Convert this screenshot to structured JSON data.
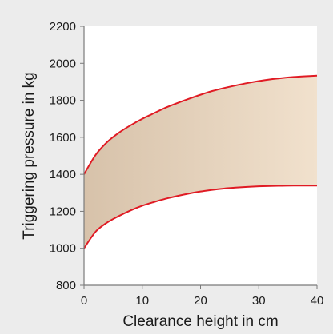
{
  "chart_data": {
    "type": "area",
    "xlabel": "Clearance height in cm",
    "ylabel": "Triggering pressure in kg",
    "xlim": [
      0,
      40
    ],
    "ylim": [
      800,
      2200
    ],
    "x_ticks": [
      0,
      10,
      20,
      30,
      40
    ],
    "y_ticks": [
      800,
      1000,
      1200,
      1400,
      1600,
      1800,
      2000,
      2200
    ],
    "grid": false,
    "series": [
      {
        "values": [
          {
            "x": 0,
            "y": 1400
          },
          {
            "x": 2,
            "y": 1505
          },
          {
            "x": 4,
            "y": 1575
          },
          {
            "x": 6,
            "y": 1625
          },
          {
            "x": 8,
            "y": 1665
          },
          {
            "x": 10,
            "y": 1700
          },
          {
            "x": 12,
            "y": 1730
          },
          {
            "x": 14,
            "y": 1760
          },
          {
            "x": 16,
            "y": 1785
          },
          {
            "x": 18,
            "y": 1808
          },
          {
            "x": 20,
            "y": 1830
          },
          {
            "x": 22,
            "y": 1850
          },
          {
            "x": 24,
            "y": 1866
          },
          {
            "x": 26,
            "y": 1880
          },
          {
            "x": 28,
            "y": 1893
          },
          {
            "x": 30,
            "y": 1904
          },
          {
            "x": 32,
            "y": 1913
          },
          {
            "x": 34,
            "y": 1920
          },
          {
            "x": 36,
            "y": 1926
          },
          {
            "x": 38,
            "y": 1930
          },
          {
            "x": 40,
            "y": 1933
          }
        ]
      },
      {
        "values": [
          {
            "x": 0,
            "y": 1000
          },
          {
            "x": 2,
            "y": 1090
          },
          {
            "x": 4,
            "y": 1140
          },
          {
            "x": 6,
            "y": 1175
          },
          {
            "x": 8,
            "y": 1205
          },
          {
            "x": 10,
            "y": 1230
          },
          {
            "x": 12,
            "y": 1250
          },
          {
            "x": 14,
            "y": 1268
          },
          {
            "x": 16,
            "y": 1283
          },
          {
            "x": 18,
            "y": 1296
          },
          {
            "x": 20,
            "y": 1307
          },
          {
            "x": 22,
            "y": 1316
          },
          {
            "x": 24,
            "y": 1323
          },
          {
            "x": 26,
            "y": 1328
          },
          {
            "x": 28,
            "y": 1332
          },
          {
            "x": 30,
            "y": 1335
          },
          {
            "x": 32,
            "y": 1337
          },
          {
            "x": 34,
            "y": 1338
          },
          {
            "x": 36,
            "y": 1339
          },
          {
            "x": 38,
            "y": 1339
          },
          {
            "x": 40,
            "y": 1339
          }
        ]
      }
    ],
    "colors": {
      "line": "#e01b24",
      "fill_left": "#d7c2aa",
      "fill_right": "#f1e1cd",
      "plot_background": "#ffffff",
      "page_background": "#ececec",
      "axis": "#7a7a7a"
    }
  }
}
